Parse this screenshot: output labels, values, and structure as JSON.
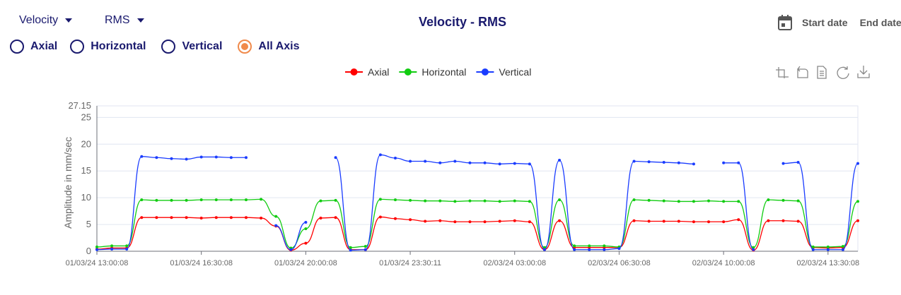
{
  "controls": {
    "metric": "Velocity",
    "stat": "RMS",
    "start_date": "Start date",
    "end_date": "End date",
    "axis_options": [
      "Axial",
      "Horizontal",
      "Vertical",
      "All Axis"
    ],
    "selected_axis": "All Axis"
  },
  "chart_data": {
    "type": "line",
    "title": "Velocity - RMS",
    "ylabel": "Amplitude in mm/sec",
    "categories": [
      "01/03/24 13:00:08",
      null,
      null,
      null,
      null,
      null,
      null,
      "01/03/24 16:30:08",
      null,
      null,
      null,
      null,
      null,
      null,
      "01/03/24 20:00:08",
      null,
      null,
      null,
      null,
      null,
      null,
      "01/03/24 23:30:11",
      null,
      null,
      null,
      null,
      null,
      null,
      "02/03/24 03:00:08",
      null,
      null,
      null,
      null,
      null,
      null,
      "02/03/24 06:30:08",
      null,
      null,
      null,
      null,
      null,
      null,
      "02/03/24 10:00:08",
      null,
      null,
      null,
      null,
      null,
      null,
      "02/03/24 13:30:08",
      null,
      null
    ],
    "series": [
      {
        "name": "Axial",
        "color": "#ff0000",
        "values": [
          0.4,
          0.6,
          0.6,
          6.3,
          6.3,
          6.3,
          6.3,
          6.2,
          6.3,
          6.3,
          6.3,
          6.2,
          4.7,
          0.2,
          1.5,
          6.2,
          6.3,
          0.3,
          0.3,
          6.4,
          6.1,
          5.9,
          5.6,
          5.7,
          5.5,
          5.5,
          5.5,
          5.6,
          5.7,
          5.5,
          0.3,
          5.7,
          0.7,
          0.7,
          0.7,
          0.7,
          5.7,
          5.6,
          5.6,
          5.6,
          5.5,
          5.5,
          5.5,
          5.9,
          0.2,
          5.7,
          5.7,
          5.6,
          0.7,
          0.6,
          0.7,
          5.7
        ]
      },
      {
        "name": "Horizontal",
        "color": "#11cc11",
        "values": [
          0.8,
          1.0,
          1.0,
          9.6,
          9.5,
          9.5,
          9.5,
          9.6,
          9.6,
          9.6,
          9.6,
          9.7,
          6.5,
          0.6,
          4.2,
          9.4,
          9.5,
          0.7,
          0.9,
          9.7,
          9.6,
          9.5,
          9.4,
          9.4,
          9.3,
          9.4,
          9.4,
          9.3,
          9.4,
          9.3,
          0.7,
          9.6,
          1.0,
          1.0,
          1.0,
          0.8,
          9.6,
          9.5,
          9.4,
          9.3,
          9.3,
          9.4,
          9.3,
          9.3,
          0.7,
          9.6,
          9.5,
          9.4,
          0.8,
          0.8,
          0.9,
          9.3
        ]
      },
      {
        "name": "Vertical",
        "color": "#1a3cff",
        "values": [
          0.3,
          0.4,
          0.4,
          17.7,
          17.5,
          17.3,
          17.2,
          17.6,
          17.6,
          17.5,
          17.5,
          null,
          4.8,
          0.3,
          5.4,
          null,
          17.5,
          0.2,
          0.3,
          18.0,
          17.4,
          16.8,
          16.8,
          16.5,
          16.8,
          16.5,
          16.5,
          16.3,
          16.4,
          16.3,
          0.3,
          17.0,
          0.3,
          0.3,
          0.3,
          0.5,
          16.8,
          16.7,
          16.6,
          16.5,
          16.3,
          null,
          16.5,
          16.5,
          0.3,
          null,
          16.4,
          16.6,
          0.3,
          0.3,
          0.3,
          16.4
        ]
      }
    ],
    "ylim": [
      0,
      27.15
    ],
    "yticks": [
      0,
      5,
      10,
      15,
      20,
      25,
      27.15
    ],
    "grid": true,
    "legend": "top"
  }
}
